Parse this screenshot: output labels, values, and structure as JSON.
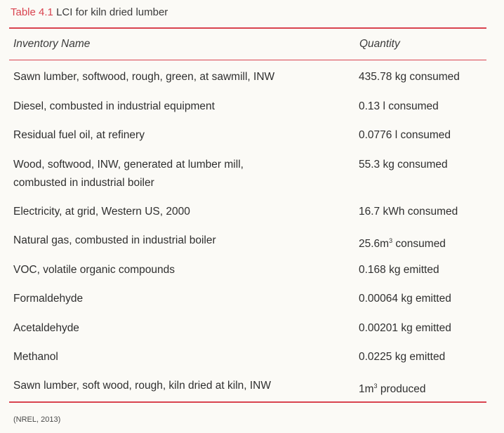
{
  "table": {
    "label": "Table 4.1",
    "title": "LCI for kiln dried lumber",
    "headers": {
      "name": "Inventory Name",
      "quantity": "Quantity"
    },
    "rows": [
      {
        "name_lines": [
          "Sawn lumber, softwood, rough, green, at sawmill, INW"
        ],
        "quantity": "435.78 kg consumed"
      },
      {
        "name_lines": [
          "Diesel, combusted in industrial equipment"
        ],
        "quantity": "0.13 l consumed"
      },
      {
        "name_lines": [
          "Residual fuel oil, at refinery"
        ],
        "quantity": "0.0776 l consumed"
      },
      {
        "name_lines": [
          "Wood, softwood, INW, generated at lumber mill,",
          "combusted in industrial boiler"
        ],
        "quantity": "55.3 kg consumed"
      },
      {
        "name_lines": [
          "Electricity, at grid, Western US, 2000"
        ],
        "quantity": "16.7 kWh consumed"
      },
      {
        "name_lines": [
          "Natural gas, combusted in industrial boiler"
        ],
        "quantity_value": "25.6m",
        "quantity_sup": "3",
        "quantity_rest": " consumed"
      },
      {
        "name_lines": [
          "VOC, volatile organic compounds"
        ],
        "quantity": "0.168 kg emitted"
      },
      {
        "name_lines": [
          "Formaldehyde"
        ],
        "quantity": "0.00064 kg emitted"
      },
      {
        "name_lines": [
          "Acetaldehyde"
        ],
        "quantity": "0.00201 kg emitted"
      },
      {
        "name_lines": [
          "Methanol"
        ],
        "quantity": "0.0225 kg emitted"
      },
      {
        "name_lines": [
          "Sawn lumber, soft wood, rough, kiln dried at kiln, INW"
        ],
        "quantity_value": "1m",
        "quantity_sup": "3",
        "quantity_rest": " produced"
      }
    ],
    "source": "(NREL, 2013)"
  },
  "colors": {
    "accent": "#d9434f",
    "text": "#2f2f2f",
    "background": "#fbfaf6"
  }
}
